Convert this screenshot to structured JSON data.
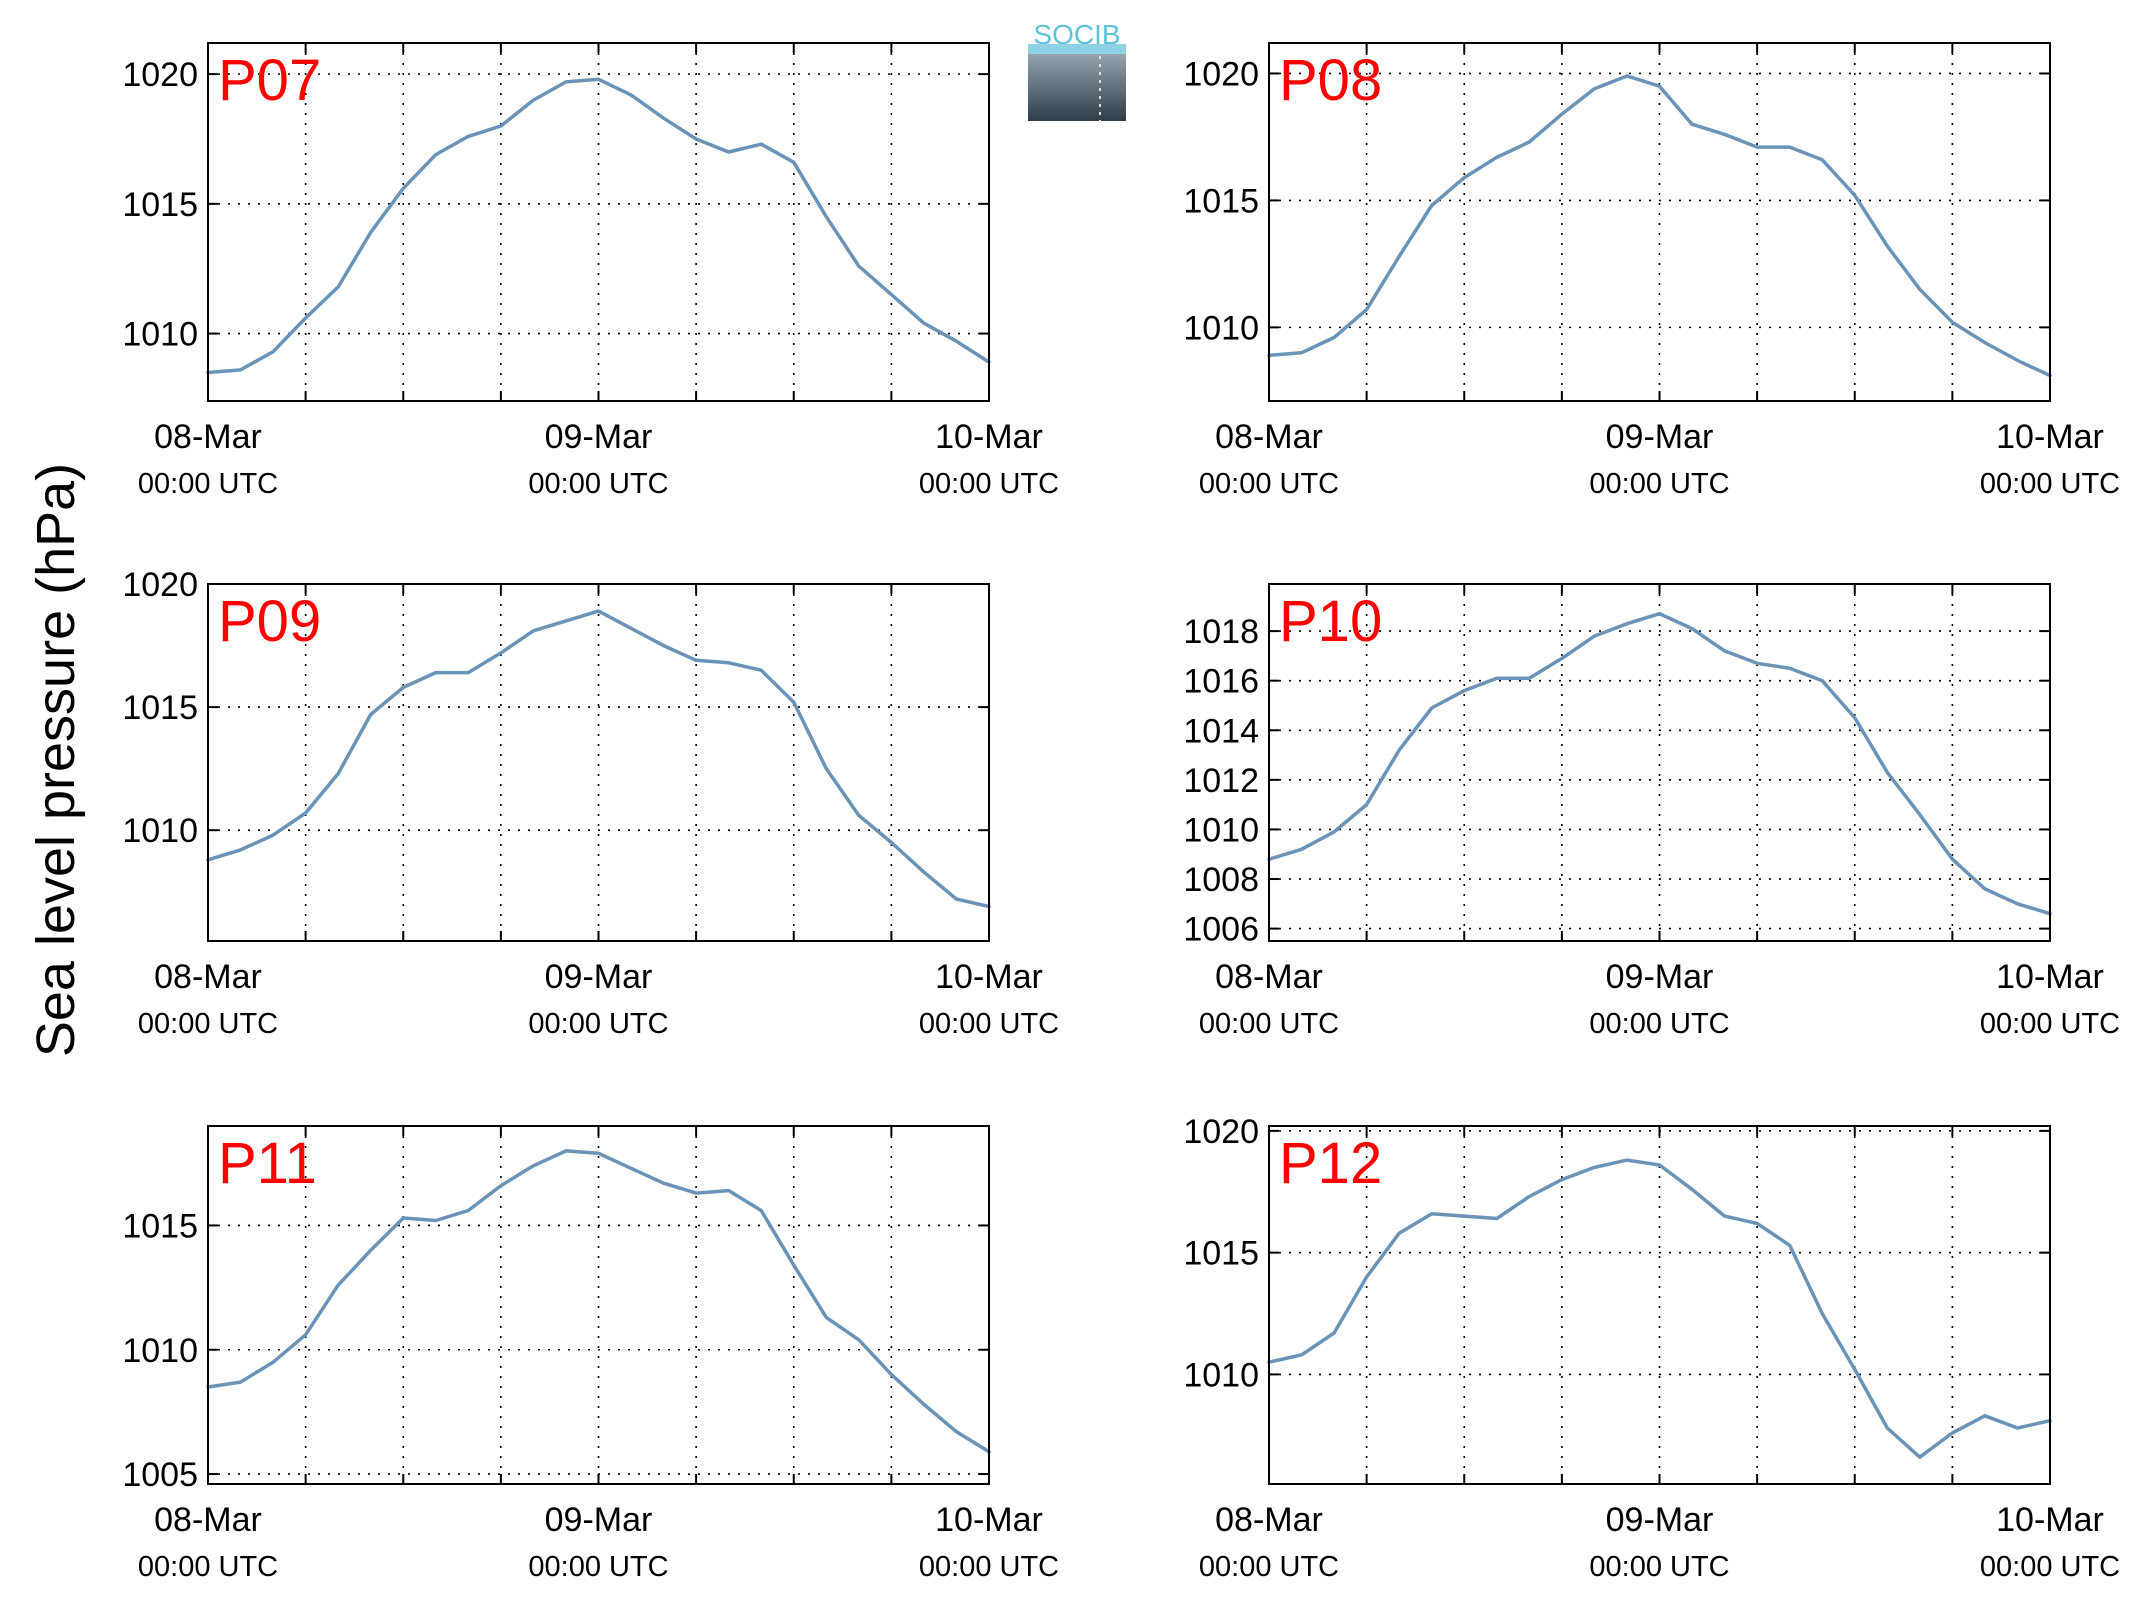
{
  "figure": {
    "ylabel": "Sea level pressure (hPa)",
    "logo": "SOCIB",
    "line_color": "#6a93b8",
    "panel_label_color": "#ff0000"
  },
  "chart_data": [
    {
      "type": "line",
      "panel_label": "P07",
      "x_ticks": [
        {
          "date": "08-Mar",
          "time": "00:00 UTC"
        },
        {
          "date": "09-Mar",
          "time": "00:00 UTC"
        },
        {
          "date": "10-Mar",
          "time": "00:00 UTC"
        }
      ],
      "xlim": [
        "08-Mar 00:00",
        "10-Mar 00:00"
      ],
      "ylim": [
        1007.4,
        1021.2
      ],
      "yticks": [
        1010,
        1015,
        1020
      ],
      "grid": true,
      "series": [
        {
          "x": [
            "08-Mar 00:00",
            "08-Mar 02:00",
            "08-Mar 04:00",
            "08-Mar 06:00",
            "08-Mar 08:00",
            "08-Mar 10:00",
            "08-Mar 12:00",
            "08-Mar 14:00",
            "08-Mar 16:00",
            "08-Mar 18:00",
            "08-Mar 20:00",
            "08-Mar 22:00",
            "09-Mar 00:00",
            "09-Mar 02:00",
            "09-Mar 04:00",
            "09-Mar 06:00",
            "09-Mar 08:00",
            "09-Mar 10:00",
            "09-Mar 12:00",
            "09-Mar 14:00",
            "09-Mar 16:00",
            "09-Mar 18:00",
            "09-Mar 20:00",
            "09-Mar 22:00",
            "10-Mar 00:00"
          ],
          "values": [
            1008.5,
            1008.6,
            1009.3,
            1010.6,
            1011.8,
            1013.9,
            1015.6,
            1016.9,
            1017.6,
            1018.0,
            1019.0,
            1019.7,
            1019.8,
            1019.2,
            1018.3,
            1017.5,
            1017.0,
            1017.3,
            1016.6,
            1014.5,
            1012.6,
            1011.5,
            1010.4,
            1009.7,
            1008.9
          ]
        }
      ]
    },
    {
      "type": "line",
      "panel_label": "P08",
      "x_ticks": [
        {
          "date": "08-Mar",
          "time": "00:00 UTC"
        },
        {
          "date": "09-Mar",
          "time": "00:00 UTC"
        },
        {
          "date": "10-Mar",
          "time": "00:00 UTC"
        }
      ],
      "xlim": [
        "08-Mar 00:00",
        "10-Mar 00:00"
      ],
      "ylim": [
        1007.1,
        1021.2
      ],
      "yticks": [
        1010,
        1015,
        1020
      ],
      "grid": true,
      "series": [
        {
          "x": [
            "08-Mar 00:00",
            "08-Mar 02:00",
            "08-Mar 04:00",
            "08-Mar 06:00",
            "08-Mar 08:00",
            "08-Mar 10:00",
            "08-Mar 12:00",
            "08-Mar 14:00",
            "08-Mar 16:00",
            "08-Mar 18:00",
            "08-Mar 20:00",
            "08-Mar 22:00",
            "09-Mar 00:00",
            "09-Mar 02:00",
            "09-Mar 04:00",
            "09-Mar 06:00",
            "09-Mar 08:00",
            "09-Mar 10:00",
            "09-Mar 12:00",
            "09-Mar 14:00",
            "09-Mar 16:00",
            "09-Mar 18:00",
            "09-Mar 20:00",
            "09-Mar 22:00",
            "10-Mar 00:00"
          ],
          "values": [
            1008.9,
            1009.0,
            1009.6,
            1010.7,
            1012.8,
            1014.8,
            1015.9,
            1016.7,
            1017.3,
            1018.4,
            1019.4,
            1019.9,
            1019.5,
            1018.0,
            1017.6,
            1017.1,
            1017.1,
            1016.6,
            1015.2,
            1013.2,
            1011.5,
            1010.2,
            1009.4,
            1008.7,
            1008.1
          ]
        }
      ]
    },
    {
      "type": "line",
      "panel_label": "P09",
      "x_ticks": [
        {
          "date": "08-Mar",
          "time": "00:00 UTC"
        },
        {
          "date": "09-Mar",
          "time": "00:00 UTC"
        },
        {
          "date": "10-Mar",
          "time": "00:00 UTC"
        }
      ],
      "xlim": [
        "08-Mar 00:00",
        "10-Mar 00:00"
      ],
      "ylim": [
        1005.5,
        1020.0
      ],
      "yticks": [
        1010,
        1015,
        1020
      ],
      "grid": true,
      "series": [
        {
          "x": [
            "08-Mar 00:00",
            "08-Mar 02:00",
            "08-Mar 04:00",
            "08-Mar 06:00",
            "08-Mar 08:00",
            "08-Mar 10:00",
            "08-Mar 12:00",
            "08-Mar 14:00",
            "08-Mar 16:00",
            "08-Mar 18:00",
            "08-Mar 20:00",
            "08-Mar 22:00",
            "09-Mar 00:00",
            "09-Mar 02:00",
            "09-Mar 04:00",
            "09-Mar 06:00",
            "09-Mar 08:00",
            "09-Mar 10:00",
            "09-Mar 12:00",
            "09-Mar 14:00",
            "09-Mar 16:00",
            "09-Mar 18:00",
            "09-Mar 20:00",
            "09-Mar 22:00",
            "10-Mar 00:00"
          ],
          "values": [
            1008.8,
            1009.2,
            1009.8,
            1010.7,
            1012.3,
            1014.7,
            1015.8,
            1016.4,
            1016.4,
            1017.2,
            1018.1,
            1018.5,
            1018.9,
            1018.2,
            1017.5,
            1016.9,
            1016.8,
            1016.5,
            1015.2,
            1012.5,
            1010.6,
            1009.5,
            1008.3,
            1007.2,
            1006.9
          ]
        }
      ]
    },
    {
      "type": "line",
      "panel_label": "P10",
      "x_ticks": [
        {
          "date": "08-Mar",
          "time": "00:00 UTC"
        },
        {
          "date": "09-Mar",
          "time": "00:00 UTC"
        },
        {
          "date": "10-Mar",
          "time": "00:00 UTC"
        }
      ],
      "xlim": [
        "08-Mar 00:00",
        "10-Mar 00:00"
      ],
      "ylim": [
        1005.5,
        1019.9
      ],
      "yticks": [
        1006,
        1008,
        1010,
        1012,
        1014,
        1016,
        1018
      ],
      "grid": true,
      "series": [
        {
          "x": [
            "08-Mar 00:00",
            "08-Mar 02:00",
            "08-Mar 04:00",
            "08-Mar 06:00",
            "08-Mar 08:00",
            "08-Mar 10:00",
            "08-Mar 12:00",
            "08-Mar 14:00",
            "08-Mar 16:00",
            "08-Mar 18:00",
            "08-Mar 20:00",
            "08-Mar 22:00",
            "09-Mar 00:00",
            "09-Mar 02:00",
            "09-Mar 04:00",
            "09-Mar 06:00",
            "09-Mar 08:00",
            "09-Mar 10:00",
            "09-Mar 12:00",
            "09-Mar 14:00",
            "09-Mar 16:00",
            "09-Mar 18:00",
            "09-Mar 20:00",
            "09-Mar 22:00",
            "10-Mar 00:00"
          ],
          "values": [
            1008.8,
            1009.2,
            1009.9,
            1011.0,
            1013.2,
            1014.9,
            1015.6,
            1016.1,
            1016.1,
            1016.9,
            1017.8,
            1018.3,
            1018.7,
            1018.1,
            1017.2,
            1016.7,
            1016.5,
            1016.0,
            1014.5,
            1012.3,
            1010.6,
            1008.8,
            1007.6,
            1007.0,
            1006.6
          ]
        }
      ]
    },
    {
      "type": "line",
      "panel_label": "P11",
      "x_ticks": [
        {
          "date": "08-Mar",
          "time": "00:00 UTC"
        },
        {
          "date": "09-Mar",
          "time": "00:00 UTC"
        },
        {
          "date": "10-Mar",
          "time": "00:00 UTC"
        }
      ],
      "xlim": [
        "08-Mar 00:00",
        "10-Mar 00:00"
      ],
      "ylim": [
        1004.6,
        1019.0
      ],
      "yticks": [
        1005,
        1010,
        1015
      ],
      "grid": true,
      "series": [
        {
          "x": [
            "08-Mar 00:00",
            "08-Mar 02:00",
            "08-Mar 04:00",
            "08-Mar 06:00",
            "08-Mar 08:00",
            "08-Mar 10:00",
            "08-Mar 12:00",
            "08-Mar 14:00",
            "08-Mar 16:00",
            "08-Mar 18:00",
            "08-Mar 20:00",
            "08-Mar 22:00",
            "09-Mar 00:00",
            "09-Mar 02:00",
            "09-Mar 04:00",
            "09-Mar 06:00",
            "09-Mar 08:00",
            "09-Mar 10:00",
            "09-Mar 12:00",
            "09-Mar 14:00",
            "09-Mar 16:00",
            "09-Mar 18:00",
            "09-Mar 20:00",
            "09-Mar 22:00",
            "10-Mar 00:00"
          ],
          "values": [
            1008.5,
            1008.7,
            1009.5,
            1010.6,
            1012.6,
            1014.0,
            1015.3,
            1015.2,
            1015.6,
            1016.6,
            1017.4,
            1018.0,
            1017.9,
            1017.3,
            1016.7,
            1016.3,
            1016.4,
            1015.6,
            1013.4,
            1011.3,
            1010.4,
            1009.0,
            1007.8,
            1006.7,
            1005.9
          ]
        }
      ]
    },
    {
      "type": "line",
      "panel_label": "P12",
      "x_ticks": [
        {
          "date": "08-Mar",
          "time": "00:00 UTC"
        },
        {
          "date": "09-Mar",
          "time": "00:00 UTC"
        },
        {
          "date": "10-Mar",
          "time": "00:00 UTC"
        }
      ],
      "xlim": [
        "08-Mar 00:00",
        "10-Mar 00:00"
      ],
      "ylim": [
        1005.5,
        1020.2
      ],
      "yticks": [
        1010,
        1015,
        1020
      ],
      "grid": true,
      "series": [
        {
          "x": [
            "08-Mar 00:00",
            "08-Mar 02:00",
            "08-Mar 04:00",
            "08-Mar 06:00",
            "08-Mar 08:00",
            "08-Mar 10:00",
            "08-Mar 12:00",
            "08-Mar 14:00",
            "08-Mar 16:00",
            "08-Mar 18:00",
            "08-Mar 20:00",
            "08-Mar 22:00",
            "09-Mar 00:00",
            "09-Mar 02:00",
            "09-Mar 04:00",
            "09-Mar 06:00",
            "09-Mar 08:00",
            "09-Mar 10:00",
            "09-Mar 12:00",
            "09-Mar 14:00",
            "09-Mar 16:00",
            "09-Mar 18:00",
            "09-Mar 20:00",
            "09-Mar 22:00",
            "10-Mar 00:00"
          ],
          "values": [
            1010.5,
            1010.8,
            1011.7,
            1014.0,
            1015.8,
            1016.6,
            1016.5,
            1016.4,
            1017.3,
            1018.0,
            1018.5,
            1018.8,
            1018.6,
            1017.6,
            1016.5,
            1016.2,
            1015.3,
            1012.5,
            1010.2,
            1007.8,
            1006.6,
            1007.6,
            1008.3,
            1007.8,
            1008.1
          ]
        }
      ]
    }
  ]
}
